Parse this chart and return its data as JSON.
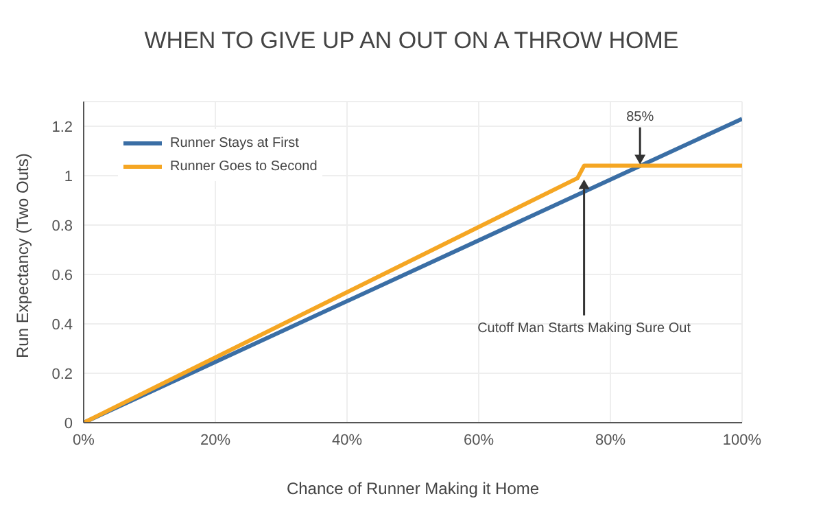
{
  "chart_data": {
    "type": "line",
    "title": "WHEN TO GIVE UP AN OUT ON A THROW HOME",
    "xlabel": "Chance of Runner Making it Home",
    "ylabel": "Run Expectancy (Two Outs)",
    "series": [
      {
        "name": "Runner Stays at First",
        "color": "#3a6ea5",
        "x": [
          0,
          100
        ],
        "values": [
          0,
          1.23
        ]
      },
      {
        "name": "Runner Goes to Second",
        "color": "#f5a623",
        "x": [
          0,
          75,
          76,
          100
        ],
        "values": [
          0,
          0.99,
          1.04,
          1.04
        ]
      }
    ],
    "xlim": [
      0,
      100
    ],
    "xticks": [
      {
        "value": 0,
        "label": "0%"
      },
      {
        "value": 20,
        "label": "20%"
      },
      {
        "value": 40,
        "label": "40%"
      },
      {
        "value": 60,
        "label": "60%"
      },
      {
        "value": 80,
        "label": "80%"
      },
      {
        "value": 100,
        "label": "100%"
      }
    ],
    "ylim": [
      0,
      1.3
    ],
    "yticks": [
      0,
      0.2,
      0.4,
      0.6,
      0.8,
      1,
      1.2
    ],
    "annotations": [
      {
        "text": "85%",
        "x": 84.5,
        "y": 1.04
      },
      {
        "text": "Cutoff Man Starts Making Sure Out",
        "x": 76,
        "y": 0.99
      }
    ],
    "grid": true,
    "legend": "top left",
    "marker": "none",
    "line_style": "solid"
  }
}
